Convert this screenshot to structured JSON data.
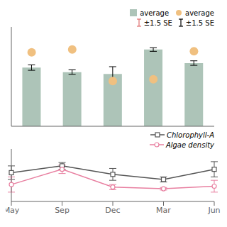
{
  "chart_data": [
    {
      "type": "bar",
      "categories": [
        "May",
        "Sep",
        "Dec",
        "Mar",
        "Jun"
      ],
      "series": [
        {
          "name": "average",
          "type": "bar",
          "color": "#adc4b8",
          "values": [
            6.5,
            6.0,
            5.8,
            8.5,
            7.0
          ],
          "errors": [
            0.3,
            0.25,
            0.8,
            0.2,
            0.25
          ]
        },
        {
          "name": "average",
          "type": "scatter",
          "color": "#f0c080",
          "marker": "circle",
          "values": [
            8.2,
            8.5,
            5.0,
            5.2,
            8.3
          ]
        }
      ],
      "annotations": [
        {
          "text": "±1.5 SE",
          "color": "#e07070"
        },
        {
          "text": "±1.5 SE",
          "color": "#000000"
        }
      ],
      "ylim": [
        0,
        11
      ],
      "yticks": [],
      "tick_labels": false,
      "legend": "upper right"
    },
    {
      "type": "line",
      "categories": [
        "May",
        "Sep",
        "Dec",
        "Mar",
        "Jun"
      ],
      "series": [
        {
          "name": "Chlorophyll-A",
          "color": "#555555",
          "marker": "square",
          "values": [
            3.2,
            4.0,
            3.0,
            2.4,
            3.6
          ],
          "errors": [
            0.8,
            0.4,
            0.7,
            0.3,
            0.9
          ]
        },
        {
          "name": "Algae density",
          "color": "#e87fa0",
          "marker": "circle",
          "values": [
            1.8,
            3.6,
            1.5,
            1.3,
            1.6
          ],
          "errors": [
            0.9,
            0.5,
            0.3,
            0.15,
            0.7
          ]
        }
      ],
      "ylim": [
        -0.2,
        6.0
      ],
      "yticks": [],
      "tick_labels": "x",
      "legend": "upper right"
    }
  ]
}
